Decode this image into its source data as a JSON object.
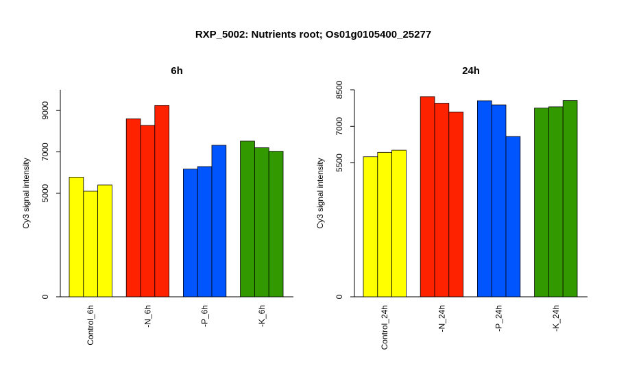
{
  "title": "RXP_5002: Nutrients root; Os01g0105400_25277",
  "chart_data": [
    {
      "type": "bar",
      "title": "6h",
      "ylabel": "Cy3 signal intensity",
      "ylim": [
        0,
        10000
      ],
      "yticks": [
        0,
        5000,
        7000,
        9000
      ],
      "categories": [
        "Control_6h",
        "-N_6h",
        "-P_6h",
        "-K_6h"
      ],
      "colors": [
        "#ffff00",
        "#ff2200",
        "#0055ff",
        "#339900"
      ],
      "groups": [
        {
          "category": "Control_6h",
          "values": [
            5780,
            5100,
            5400
          ]
        },
        {
          "category": "-N_6h",
          "values": [
            8600,
            8280,
            9250
          ]
        },
        {
          "category": "-P_6h",
          "values": [
            6170,
            6290,
            7320
          ]
        },
        {
          "category": "-K_6h",
          "values": [
            7520,
            7200,
            7030
          ]
        }
      ]
    },
    {
      "type": "bar",
      "title": "24h",
      "ylabel": "Cy3 signal intensity",
      "ylim": [
        0,
        8500
      ],
      "yticks": [
        0,
        5500,
        7000,
        8500
      ],
      "categories": [
        "Control_24h",
        "-N_24h",
        "-P_24h",
        "-K_24h"
      ],
      "colors": [
        "#ffff00",
        "#ff2200",
        "#0055ff",
        "#339900"
      ],
      "groups": [
        {
          "category": "Control_24h",
          "values": [
            5750,
            5930,
            6020
          ]
        },
        {
          "category": "-N_24h",
          "values": [
            8220,
            7950,
            7590
          ]
        },
        {
          "category": "-P_24h",
          "values": [
            8050,
            7880,
            6580
          ]
        },
        {
          "category": "-K_24h",
          "values": [
            7750,
            7800,
            8060
          ]
        }
      ]
    }
  ]
}
